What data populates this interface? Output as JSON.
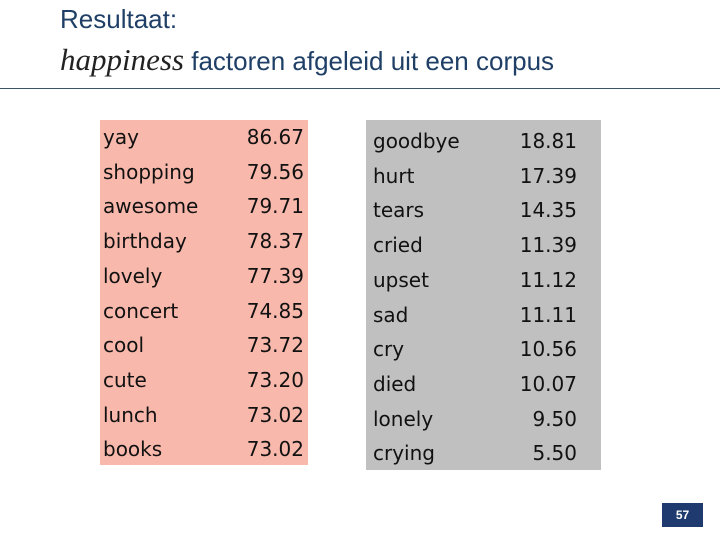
{
  "header": {
    "title": "Resultaat:",
    "subtitle_emphasis": "happiness",
    "subtitle": "factoren afgeleid uit een corpus"
  },
  "tables": [
    {
      "rows": [
        [
          "yay",
          "86.67"
        ],
        [
          "shopping",
          "79.56"
        ],
        [
          "awesome",
          "79.71"
        ],
        [
          "birthday",
          "78.37"
        ],
        [
          "lovely",
          "77.39"
        ],
        [
          "concert",
          "74.85"
        ],
        [
          "cool",
          "73.72"
        ],
        [
          "cute",
          "73.20"
        ],
        [
          "lunch",
          "73.02"
        ],
        [
          "books",
          "73.02"
        ]
      ]
    },
    {
      "rows": [
        [
          "goodbye",
          "18.81"
        ],
        [
          "hurt",
          "17.39"
        ],
        [
          "tears",
          "14.35"
        ],
        [
          "cried",
          "11.39"
        ],
        [
          "upset",
          "11.12"
        ],
        [
          "sad",
          "11.11"
        ],
        [
          "cry",
          "10.56"
        ],
        [
          "died",
          "10.07"
        ],
        [
          "lonely",
          "9.50"
        ],
        [
          "crying",
          "5.50"
        ]
      ]
    }
  ],
  "page_number": "57"
}
